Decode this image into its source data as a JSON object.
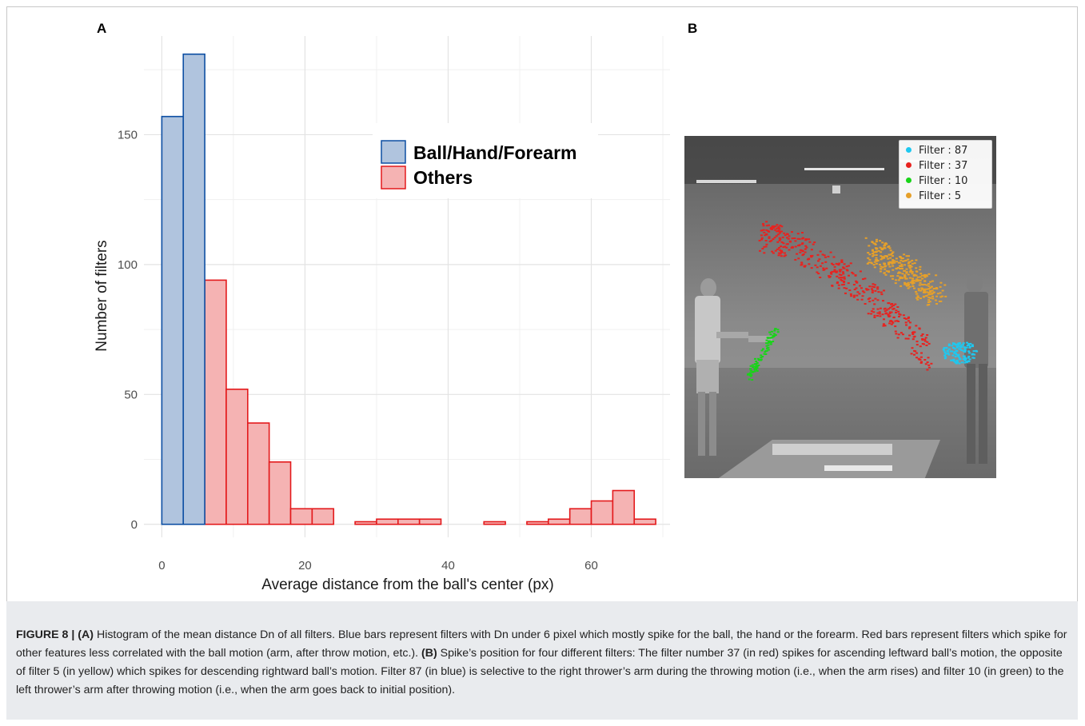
{
  "panel_labels": {
    "a": "A",
    "b": "B"
  },
  "chart_data": {
    "type": "bar",
    "xlabel": "Average distance from the ball's center (px)",
    "ylabel": "Number of filters",
    "xlim": [
      -2.5,
      71
    ],
    "ylim": [
      -5,
      188
    ],
    "xticks": [
      0,
      20,
      40,
      60
    ],
    "yticks": [
      0,
      50,
      100,
      150
    ],
    "grid": true,
    "legend_position": "top-right",
    "bin_width": 3,
    "series": [
      {
        "name": "Ball/Hand/Forearm",
        "fill": "#b0c4de",
        "stroke": "#0d4fa3",
        "bins": [
          {
            "x0": 0,
            "x1": 3,
            "value": 157
          },
          {
            "x0": 3,
            "x1": 6,
            "value": 181
          }
        ]
      },
      {
        "name": "Others",
        "fill": "#f5b3b3",
        "stroke": "#e31a1c",
        "bins": [
          {
            "x0": 0,
            "x1": 3,
            "value": 0
          },
          {
            "x0": 3,
            "x1": 6,
            "value": 0
          },
          {
            "x0": 6,
            "x1": 9,
            "value": 94
          },
          {
            "x0": 9,
            "x1": 12,
            "value": 52
          },
          {
            "x0": 12,
            "x1": 15,
            "value": 39
          },
          {
            "x0": 15,
            "x1": 18,
            "value": 24
          },
          {
            "x0": 18,
            "x1": 21,
            "value": 6
          },
          {
            "x0": 21,
            "x1": 24,
            "value": 6
          },
          {
            "x0": 24,
            "x1": 27,
            "value": 0
          },
          {
            "x0": 27,
            "x1": 30,
            "value": 1
          },
          {
            "x0": 30,
            "x1": 33,
            "value": 2
          },
          {
            "x0": 33,
            "x1": 36,
            "value": 2
          },
          {
            "x0": 36,
            "x1": 39,
            "value": 2
          },
          {
            "x0": 39,
            "x1": 42,
            "value": 0
          },
          {
            "x0": 42,
            "x1": 45,
            "value": 0
          },
          {
            "x0": 45,
            "x1": 48,
            "value": 1
          },
          {
            "x0": 48,
            "x1": 51,
            "value": 0
          },
          {
            "x0": 51,
            "x1": 54,
            "value": 1
          },
          {
            "x0": 54,
            "x1": 57,
            "value": 2
          },
          {
            "x0": 57,
            "x1": 60,
            "value": 6
          },
          {
            "x0": 60,
            "x1": 63,
            "value": 9
          },
          {
            "x0": 63,
            "x1": 66,
            "value": 13
          },
          {
            "x0": 66,
            "x1": 69,
            "value": 2
          }
        ]
      }
    ]
  },
  "photo_legend": [
    {
      "label": "Filter : 87",
      "color": "#1ec8f0"
    },
    {
      "label": "Filter : 37",
      "color": "#e8221f"
    },
    {
      "label": "Filter : 10",
      "color": "#18d418"
    },
    {
      "label": "Filter : 5",
      "color": "#e6a02a"
    }
  ],
  "caption": {
    "prefix": "FIGURE 8 | ",
    "a_tag": "(A)",
    "a_text": " Histogram of the mean distance Dn of all filters. Blue bars represent filters with Dn under 6 pixel which mostly spike for the ball, the hand or the forearm. Red bars represent filters which spike for other features less correlated with the ball motion (arm, after throw motion, etc.). ",
    "b_tag": "(B)",
    "b_text": " Spike’s position for four different filters: The filter number 37 (in red) spikes for ascending leftward ball’s motion, the opposite of filter 5 (in yellow) which spikes for descending rightward ball’s motion. Filter 87 (in blue) is selective to the right thrower’s arm during the throwing motion (i.e., when the arm rises) and filter 10 (in green) to the left thrower’s arm after throwing motion (i.e., when the arm goes back to initial position)."
  }
}
